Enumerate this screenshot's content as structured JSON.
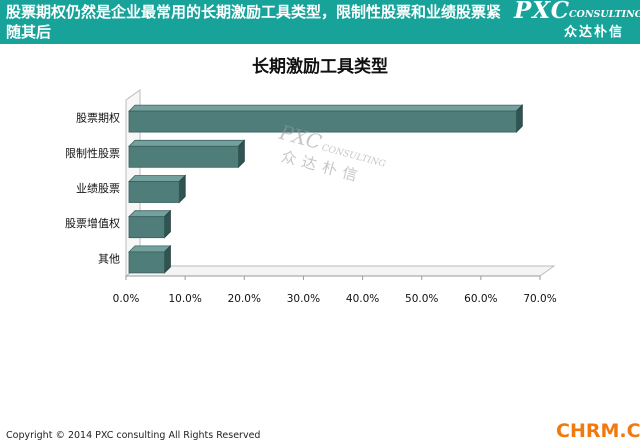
{
  "header": {
    "title": "股票期权仍然是企业最常用的长期激励工具类型，限制性股票和业绩股票紧随其后",
    "brand_pxc": "PXC",
    "brand_consulting": "CONSULTING",
    "brand_cn": "众达朴信",
    "background_color": "#17a39a"
  },
  "chart_data": {
    "type": "bar",
    "orientation": "horizontal",
    "title": "长期激励工具类型",
    "categories": [
      "股票期权",
      "限制性股票",
      "业绩股票",
      "股票增值权",
      "其他"
    ],
    "values": [
      0.66,
      0.19,
      0.09,
      0.065,
      0.065
    ],
    "xlim": [
      0,
      0.7
    ],
    "xticks": [
      "0.0%",
      "10.0%",
      "20.0%",
      "30.0%",
      "40.0%",
      "50.0%",
      "60.0%",
      "70.0%"
    ],
    "grid": false,
    "bar_color": "#4f7d79",
    "style": "3d"
  },
  "watermark": {
    "pxc": "PXC",
    "consulting": "CONSULTING",
    "cn": "众达朴信"
  },
  "footer": {
    "copyright": "Copyright © 2014 PXC consulting All Rights Reserved",
    "site": "CHRM.CN",
    "site_color": "#f07a10"
  }
}
